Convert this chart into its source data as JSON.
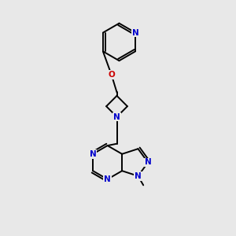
{
  "background_color": "#e8e8e8",
  "bond_color": "#000000",
  "n_color": "#0000cc",
  "o_color": "#cc0000",
  "line_width": 1.4,
  "figsize": [
    3.0,
    3.0
  ],
  "dpi": 100,
  "xlim": [
    0,
    10
  ],
  "ylim": [
    0,
    10
  ],
  "font_size": 7.5
}
